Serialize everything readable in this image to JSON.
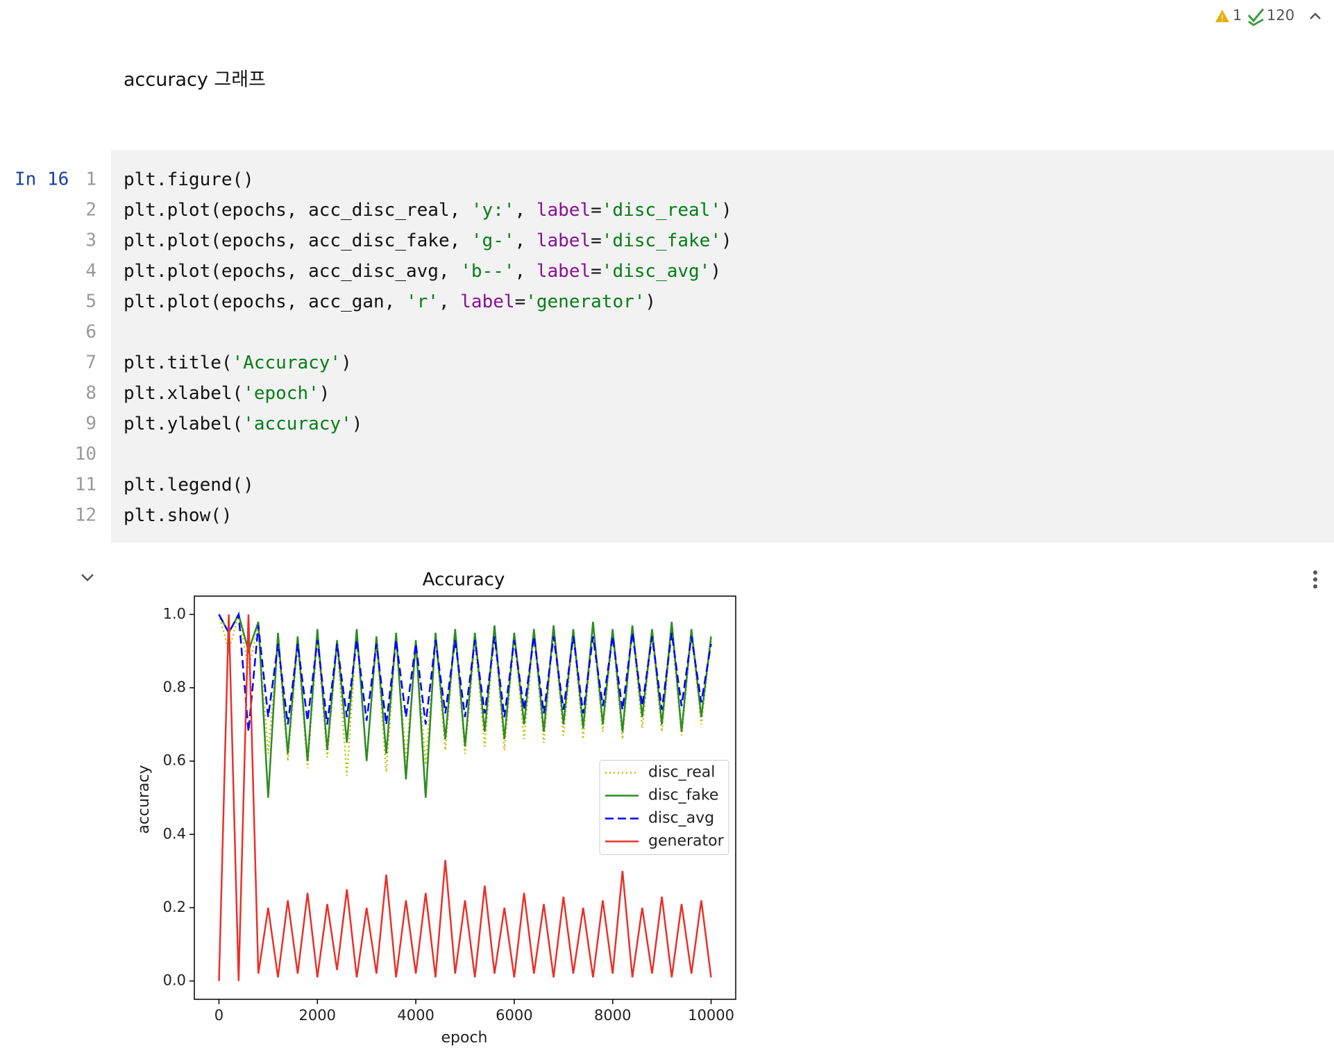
{
  "toolbar": {
    "warnings": 1,
    "checks": 120
  },
  "markdown": "accuracy 그래프",
  "cell": {
    "prompt": "In 16",
    "lines": [
      {
        "number": 1,
        "code": "plt.figure()"
      },
      {
        "number": 2,
        "code": "plt.plot(epochs, acc_disc_real, 'y:', label='disc_real')"
      },
      {
        "number": 3,
        "code": "plt.plot(epochs, acc_disc_fake, 'g-', label='disc_fake')"
      },
      {
        "number": 4,
        "code": "plt.plot(epochs, acc_disc_avg, 'b--', label='disc_avg')"
      },
      {
        "number": 5,
        "code": "plt.plot(epochs, acc_gan, 'r', label='generator')"
      },
      {
        "number": 6
      },
      {
        "number": 7,
        "code": "plt.title('Accuracy')"
      },
      {
        "number": 8,
        "code": "plt.xlabel('epoch')"
      },
      {
        "number": 9,
        "code": "plt.ylabel('accuracy')"
      },
      {
        "number": 10
      },
      {
        "number": 11,
        "code": "plt.legend()"
      },
      {
        "number": 12,
        "code": "plt.show()"
      }
    ]
  },
  "chart_data": {
    "type": "line",
    "title": "Accuracy",
    "xlabel": "epoch",
    "ylabel": "accuracy",
    "x": [
      0,
      200,
      400,
      600,
      800,
      1000,
      1200,
      1400,
      1600,
      1800,
      2000,
      2200,
      2400,
      2600,
      2800,
      3000,
      3200,
      3400,
      3600,
      3800,
      4000,
      4200,
      4400,
      4600,
      4800,
      5000,
      5200,
      5400,
      5600,
      5800,
      6000,
      6200,
      6400,
      6600,
      6800,
      7000,
      7200,
      7400,
      7600,
      7800,
      8000,
      8200,
      8400,
      8600,
      8800,
      9000,
      9200,
      9400,
      9600,
      9800,
      10000
    ],
    "series": [
      {
        "name": "disc_real",
        "color": "#bfbf00",
        "style": "dotted",
        "values": [
          1,
          0.9,
          1,
          0.85,
          0.97,
          0.62,
          0.93,
          0.6,
          0.92,
          0.58,
          0.94,
          0.61,
          0.92,
          0.56,
          0.95,
          0.6,
          0.93,
          0.57,
          0.94,
          0.6,
          0.92,
          0.59,
          0.94,
          0.63,
          0.95,
          0.62,
          0.93,
          0.64,
          0.95,
          0.63,
          0.94,
          0.66,
          0.95,
          0.65,
          0.96,
          0.67,
          0.95,
          0.66,
          0.96,
          0.68,
          0.95,
          0.66,
          0.96,
          0.69,
          0.95,
          0.68,
          0.96,
          0.67,
          0.95,
          0.7,
          0.93
        ]
      },
      {
        "name": "disc_fake",
        "color": "#2e8b22",
        "style": "solid",
        "values": [
          1,
          0.95,
          1,
          0.9,
          0.98,
          0.5,
          0.95,
          0.62,
          0.94,
          0.6,
          0.96,
          0.63,
          0.93,
          0.65,
          0.96,
          0.6,
          0.94,
          0.62,
          0.95,
          0.55,
          0.93,
          0.5,
          0.95,
          0.66,
          0.96,
          0.64,
          0.95,
          0.68,
          0.97,
          0.66,
          0.95,
          0.7,
          0.96,
          0.68,
          0.97,
          0.7,
          0.96,
          0.69,
          0.98,
          0.7,
          0.96,
          0.68,
          0.97,
          0.72,
          0.96,
          0.7,
          0.98,
          0.68,
          0.96,
          0.72,
          0.94
        ]
      },
      {
        "name": "disc_avg",
        "color": "#0000ff",
        "style": "dashed",
        "values": [
          1,
          0.95,
          1,
          0.68,
          0.97,
          0.72,
          0.92,
          0.7,
          0.92,
          0.71,
          0.93,
          0.7,
          0.92,
          0.72,
          0.93,
          0.71,
          0.92,
          0.7,
          0.93,
          0.72,
          0.92,
          0.7,
          0.93,
          0.73,
          0.93,
          0.72,
          0.93,
          0.73,
          0.94,
          0.72,
          0.93,
          0.74,
          0.94,
          0.73,
          0.94,
          0.74,
          0.94,
          0.73,
          0.94,
          0.75,
          0.94,
          0.74,
          0.95,
          0.75,
          0.94,
          0.74,
          0.95,
          0.75,
          0.94,
          0.76,
          0.92
        ]
      },
      {
        "name": "generator",
        "color": "#e8312a",
        "style": "solid",
        "values": [
          0,
          1,
          0,
          1,
          0.02,
          0.2,
          0.01,
          0.22,
          0.02,
          0.24,
          0.01,
          0.21,
          0.03,
          0.25,
          0.01,
          0.2,
          0.02,
          0.29,
          0.01,
          0.22,
          0.02,
          0.24,
          0.01,
          0.33,
          0.02,
          0.22,
          0.01,
          0.26,
          0.02,
          0.2,
          0.01,
          0.24,
          0.02,
          0.21,
          0.01,
          0.23,
          0.02,
          0.2,
          0.01,
          0.22,
          0.02,
          0.3,
          0.01,
          0.2,
          0.02,
          0.23,
          0.01,
          0.21,
          0.02,
          0.22,
          0.01
        ]
      }
    ],
    "xlim": [
      -500,
      10500
    ],
    "ylim": [
      -0.05,
      1.05
    ],
    "xticks": [
      0,
      2000,
      4000,
      6000,
      8000,
      10000
    ],
    "yticks": [
      {
        "value": 0,
        "label": "0.0"
      },
      0.2,
      0.4,
      0.6,
      0.8,
      {
        "value": 1,
        "label": "1.0"
      }
    ],
    "legend": "center right"
  }
}
